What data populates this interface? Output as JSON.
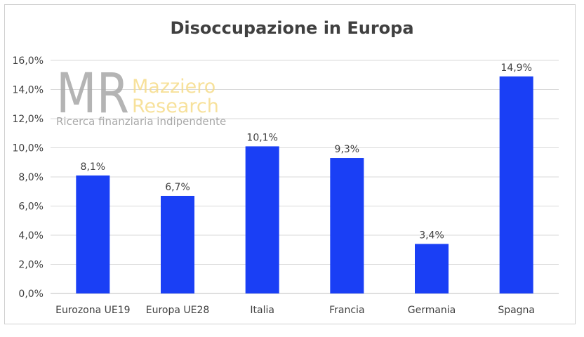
{
  "chart_data": {
    "type": "bar",
    "title": "Disoccupazione in Europa",
    "categories": [
      "Eurozona UE19",
      "Europa UE28",
      "Italia",
      "Francia",
      "Germania",
      "Spagna"
    ],
    "values": [
      8.1,
      6.7,
      10.1,
      9.3,
      3.4,
      14.9
    ],
    "value_labels": [
      "8,1%",
      "6,7%",
      "10,1%",
      "9,3%",
      "3,4%",
      "14,9%"
    ],
    "ylim": [
      0,
      16
    ],
    "yticks": [
      0,
      2,
      4,
      6,
      8,
      10,
      12,
      14,
      16
    ],
    "ytick_labels": [
      "0,0%",
      "2,0%",
      "4,0%",
      "6,0%",
      "8,0%",
      "10,0%",
      "12,0%",
      "14,0%",
      "16,0%"
    ],
    "xlabel": "",
    "ylabel": "",
    "grid": true,
    "bar_color": "#1a3ff5",
    "grid_color": "#d9d9d9"
  },
  "watermark": {
    "logo_letters": "MR",
    "brand_line1": "Mazziero",
    "brand_line2": "Research",
    "tagline": "Ricerca finanziaria indipendente"
  }
}
